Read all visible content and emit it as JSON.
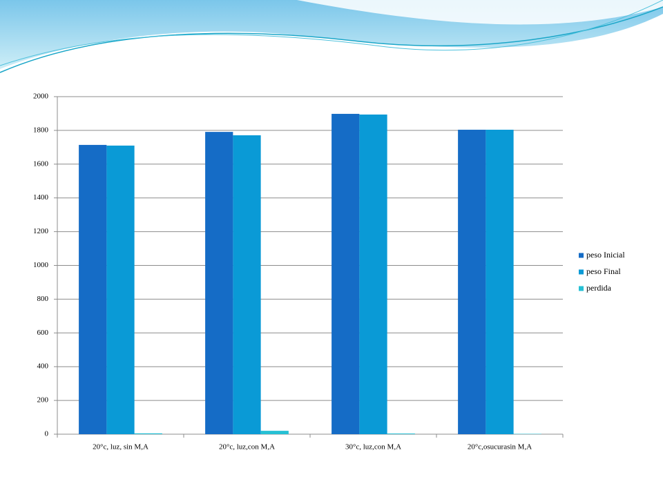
{
  "chart_data": {
    "type": "bar",
    "categories": [
      "20°c, luz, sin M,A",
      "20°c, luz,con M,A",
      "30°c, luz,con M,A",
      "20°c,osucurasin M,A"
    ],
    "series": [
      {
        "name": "peso Inicial",
        "color": "#156cc6",
        "values": [
          1714,
          1791,
          1898,
          1804
        ]
      },
      {
        "name": "peso Final",
        "color": "#0a9ad6",
        "values": [
          1710,
          1771,
          1894,
          1804
        ]
      },
      {
        "name": "perdida",
        "color": "#26c0d4",
        "values": [
          5,
          20,
          4,
          2
        ]
      }
    ],
    "ylim": [
      0,
      2000
    ],
    "yticks": [
      0,
      200,
      400,
      600,
      800,
      1000,
      1200,
      1400,
      1600,
      1800,
      2000
    ],
    "grid": true,
    "legend": "right"
  }
}
